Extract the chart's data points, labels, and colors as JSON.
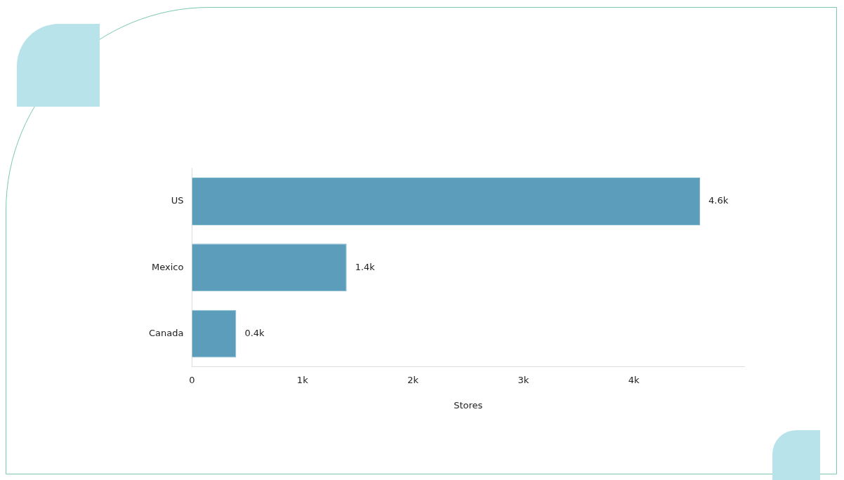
{
  "chart_data": {
    "type": "bar",
    "orientation": "horizontal",
    "xlabel": "Stores",
    "categories": [
      "US",
      "Mexico",
      "Canada"
    ],
    "values": [
      4600,
      1400,
      400
    ],
    "value_labels": [
      "4.6k",
      "1.4k",
      "0.4k"
    ],
    "color": "#5b9dba",
    "xlim": [
      0,
      5000
    ],
    "xticks": [
      0,
      {
        "value": 1000,
        "label": "1k"
      },
      {
        "value": 2000,
        "label": "2k"
      },
      {
        "value": 3000,
        "label": "3k"
      },
      {
        "value": 4000,
        "label": "4k"
      }
    ],
    "grid": false,
    "legend": false
  }
}
